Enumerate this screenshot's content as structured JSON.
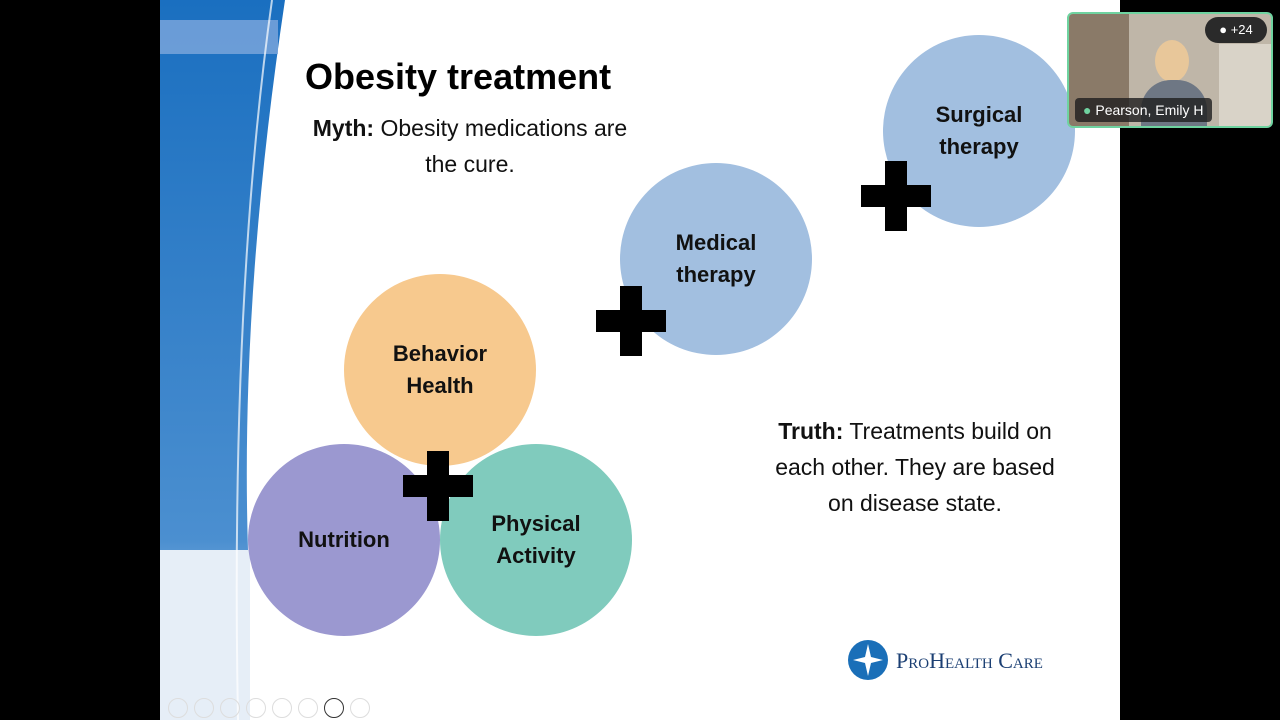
{
  "slide": {
    "title": "Obesity treatment",
    "myth": {
      "label": "Myth:",
      "text": "Obesity medications are the cure."
    },
    "circles": [
      {
        "label": "Behavior Health"
      },
      {
        "label": "Nutrition"
      },
      {
        "label": "Physical Activity"
      },
      {
        "label": "Medical therapy"
      },
      {
        "label": "Surgical therapy"
      }
    ],
    "truth": {
      "label": "Truth:",
      "text": "Treatments build on each other. They are based on disease state."
    },
    "logo": "ProHealth Care"
  },
  "video": {
    "participant": "Pearson, Emily H",
    "others": "+24"
  }
}
